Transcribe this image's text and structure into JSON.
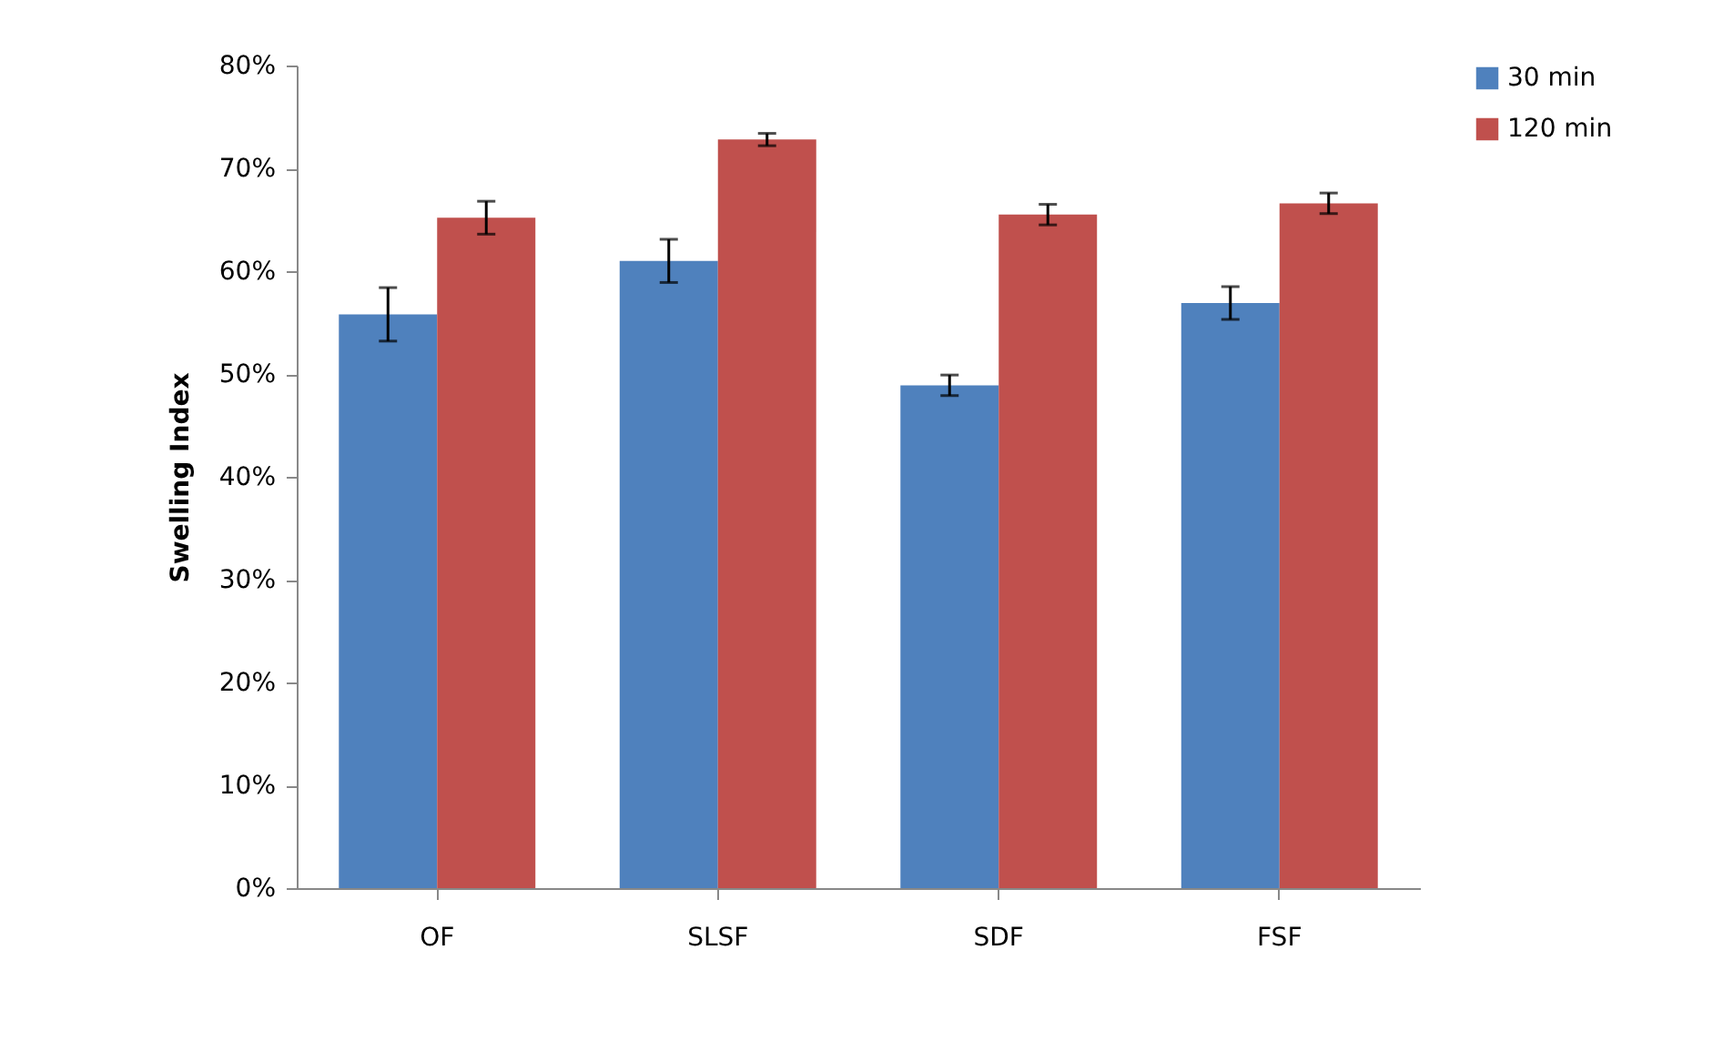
{
  "chart_data": {
    "type": "bar",
    "ylabel": "Swelling Index",
    "categories": [
      "OF",
      "SLSF",
      "SDF",
      "FSF"
    ],
    "series": [
      {
        "name": "30 min",
        "color": "#4f81bd",
        "values": [
          55.8,
          61.0,
          48.9,
          56.9
        ],
        "errors": [
          2.6,
          2.1,
          1.0,
          1.6
        ]
      },
      {
        "name": "120 min",
        "color": "#c0504d",
        "values": [
          65.2,
          72.8,
          65.5,
          66.6
        ],
        "errors": [
          1.6,
          0.6,
          1.0,
          1.0
        ]
      }
    ],
    "ylim": [
      0,
      80
    ],
    "yticks": [
      {
        "value": 0,
        "label": "0%"
      },
      {
        "value": 10,
        "label": "10%"
      },
      {
        "value": 20,
        "label": "20%"
      },
      {
        "value": 30,
        "label": "30%"
      },
      {
        "value": 40,
        "label": "40%"
      },
      {
        "value": 50,
        "label": "50%"
      },
      {
        "value": 60,
        "label": "60%"
      },
      {
        "value": 70,
        "label": "70%"
      },
      {
        "value": 80,
        "label": "80%"
      }
    ],
    "legend": "right",
    "grid": false
  }
}
